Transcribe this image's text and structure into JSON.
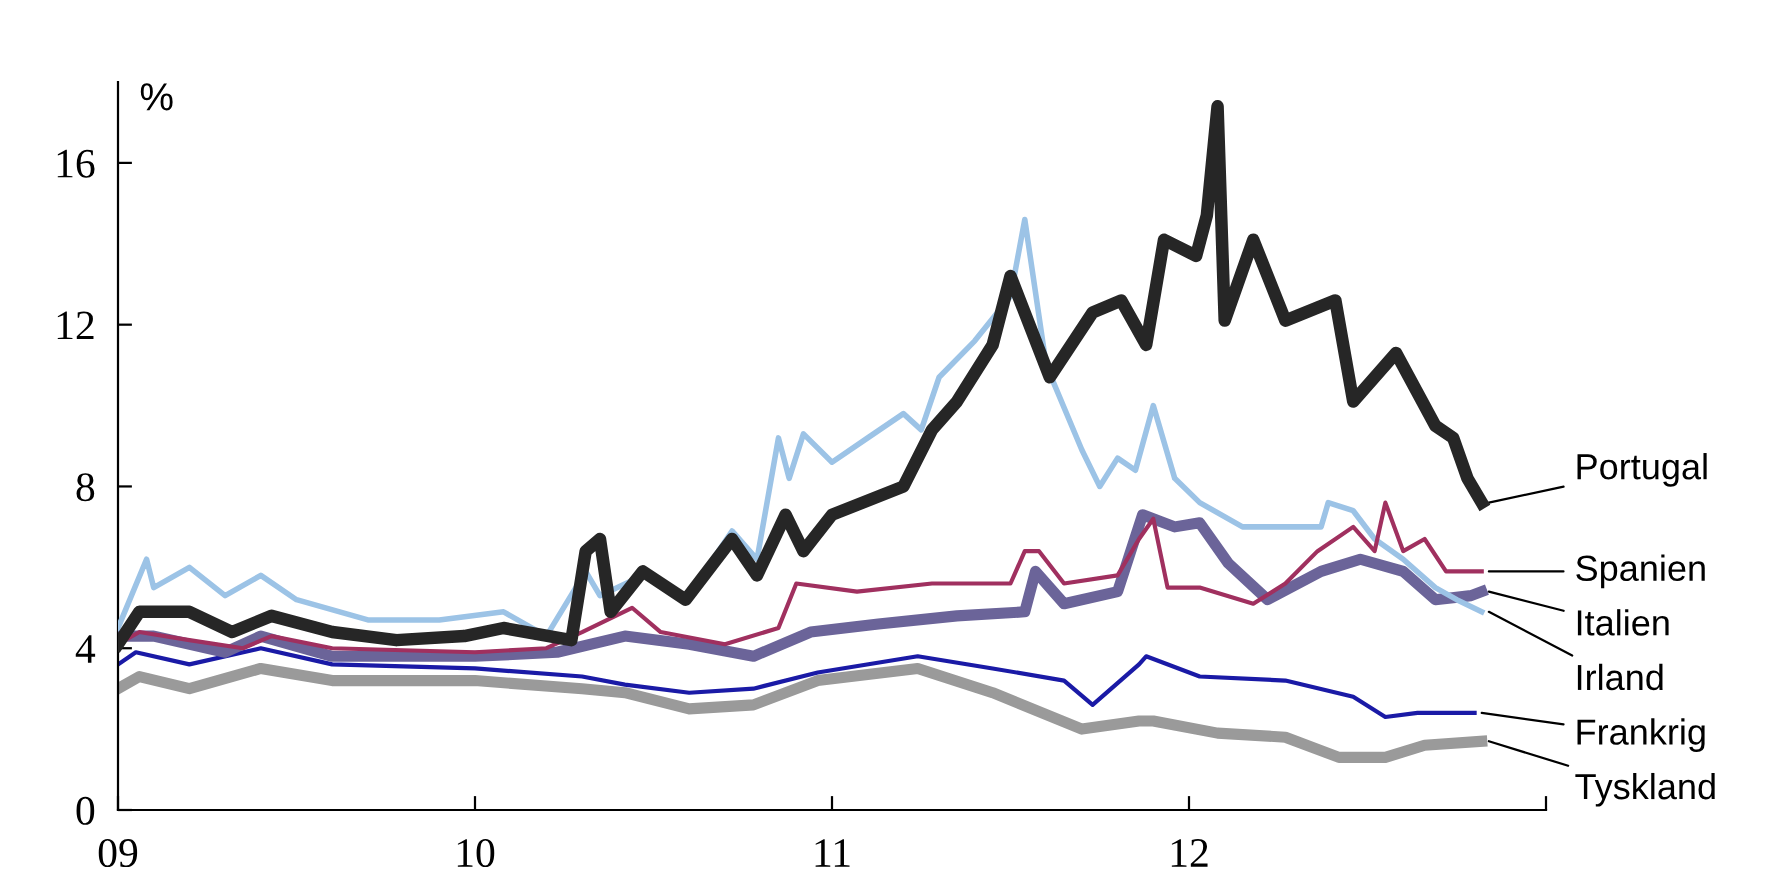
{
  "chart_data": {
    "type": "line",
    "ylabel": "%",
    "xlim": [
      2009,
      2013
    ],
    "ylim": [
      0,
      18
    ],
    "xticks": [
      {
        "value": 2009,
        "label": "09"
      },
      {
        "value": 2010,
        "label": "10"
      },
      {
        "value": 2011,
        "label": "11"
      },
      {
        "value": 2012,
        "label": "12"
      },
      {
        "value": 2013,
        "label": null
      }
    ],
    "yticks": [
      0,
      4,
      8,
      12,
      16
    ],
    "line_style": "solid",
    "series": [
      {
        "name": "Portugal",
        "color": "#262626",
        "x": [
          2009.0,
          2009.06,
          2009.2,
          2009.32,
          2009.43,
          2009.6,
          2009.78,
          2009.97,
          2010.08,
          2010.27,
          2010.31,
          2010.35,
          2010.38,
          2010.47,
          2010.59,
          2010.72,
          2010.79,
          2010.87,
          2010.92,
          2011.0,
          2011.2,
          2011.28,
          2011.35,
          2011.45,
          2011.5,
          2011.61,
          2011.73,
          2011.81,
          2011.88,
          2011.93,
          2012.02,
          2012.05,
          2012.08,
          2012.1,
          2012.18,
          2012.27,
          2012.41,
          2012.46,
          2012.58,
          2012.69,
          2012.74,
          2012.78,
          2012.82
        ],
        "values": [
          4.1,
          4.9,
          4.9,
          4.4,
          4.8,
          4.4,
          4.2,
          4.3,
          4.5,
          4.2,
          6.4,
          6.7,
          4.9,
          5.9,
          5.2,
          6.7,
          5.8,
          7.3,
          6.4,
          7.3,
          8.0,
          9.4,
          10.1,
          11.5,
          13.2,
          10.7,
          12.3,
          12.6,
          11.5,
          14.1,
          13.7,
          14.7,
          17.4,
          12.1,
          14.1,
          12.1,
          12.6,
          10.1,
          11.3,
          9.5,
          9.2,
          8.2,
          7.6
        ]
      },
      {
        "name": "Spanien",
        "color": "#a0305f",
        "x": [
          2009.0,
          2009.06,
          2009.2,
          2009.35,
          2009.43,
          2009.6,
          2010.0,
          2010.2,
          2010.3,
          2010.44,
          2010.52,
          2010.7,
          2010.85,
          2010.9,
          2011.07,
          2011.28,
          2011.5,
          2011.54,
          2011.58,
          2011.65,
          2011.8,
          2011.86,
          2011.9,
          2011.94,
          2012.03,
          2012.18,
          2012.27,
          2012.36,
          2012.46,
          2012.52,
          2012.55,
          2012.6,
          2012.66,
          2012.72,
          2012.82
        ],
        "values": [
          4.1,
          4.4,
          4.2,
          4.0,
          4.3,
          4.0,
          3.9,
          4.0,
          4.4,
          5.0,
          4.4,
          4.1,
          4.5,
          5.6,
          5.4,
          5.6,
          5.6,
          6.4,
          6.4,
          5.6,
          5.8,
          6.7,
          7.2,
          5.5,
          5.5,
          5.1,
          5.6,
          6.4,
          7.0,
          6.4,
          7.6,
          6.4,
          6.7,
          5.9,
          5.9
        ]
      },
      {
        "name": "Italien",
        "color": "#6b6499",
        "x": [
          2009.0,
          2009.1,
          2009.3,
          2009.4,
          2009.6,
          2010.0,
          2010.23,
          2010.42,
          2010.6,
          2010.78,
          2010.94,
          2011.13,
          2011.35,
          2011.54,
          2011.57,
          2011.65,
          2011.8,
          2011.87,
          2011.96,
          2012.03,
          2012.11,
          2012.22,
          2012.37,
          2012.48,
          2012.6,
          2012.69,
          2012.79,
          2012.82
        ],
        "values": [
          4.3,
          4.3,
          3.9,
          4.3,
          3.8,
          3.8,
          3.9,
          4.3,
          4.1,
          3.8,
          4.4,
          4.6,
          4.8,
          4.9,
          5.9,
          5.1,
          5.4,
          7.3,
          7.0,
          7.1,
          6.1,
          5.2,
          5.9,
          6.2,
          5.9,
          5.2,
          5.3,
          5.4
        ]
      },
      {
        "name": "Irland",
        "color": "#9cc3e6",
        "x": [
          2009.0,
          2009.08,
          2009.1,
          2009.2,
          2009.3,
          2009.4,
          2009.5,
          2009.7,
          2009.9,
          2010.08,
          2010.2,
          2010.31,
          2010.35,
          2010.47,
          2010.59,
          2010.72,
          2010.79,
          2010.85,
          2010.88,
          2010.92,
          2011.0,
          2011.1,
          2011.2,
          2011.25,
          2011.3,
          2011.4,
          2011.5,
          2011.54,
          2011.6,
          2011.7,
          2011.75,
          2011.8,
          2011.85,
          2011.9,
          2011.96,
          2012.03,
          2012.15,
          2012.37,
          2012.39,
          2012.46,
          2012.52,
          2012.6,
          2012.69,
          2012.75,
          2012.82
        ],
        "values": [
          4.5,
          6.2,
          5.5,
          6.0,
          5.3,
          5.8,
          5.2,
          4.7,
          4.7,
          4.9,
          4.3,
          5.9,
          5.3,
          5.8,
          5.2,
          6.9,
          6.2,
          9.2,
          8.2,
          9.3,
          8.6,
          9.2,
          9.8,
          9.4,
          10.7,
          11.6,
          12.7,
          14.6,
          11.0,
          8.9,
          8.0,
          8.7,
          8.4,
          10.0,
          8.2,
          7.6,
          7.0,
          7.0,
          7.6,
          7.4,
          6.7,
          6.2,
          5.5,
          5.2,
          4.9
        ]
      },
      {
        "name": "Frankrig",
        "color": "#1a1aa6",
        "x": [
          2009.0,
          2009.05,
          2009.2,
          2009.4,
          2009.6,
          2010.0,
          2010.3,
          2010.42,
          2010.6,
          2010.78,
          2010.96,
          2011.24,
          2011.45,
          2011.65,
          2011.73,
          2011.86,
          2011.88,
          2012.03,
          2012.27,
          2012.46,
          2012.55,
          2012.64,
          2012.8
        ],
        "values": [
          3.6,
          3.9,
          3.6,
          4.0,
          3.6,
          3.5,
          3.3,
          3.1,
          2.9,
          3.0,
          3.4,
          3.8,
          3.5,
          3.2,
          2.6,
          3.6,
          3.8,
          3.3,
          3.2,
          2.8,
          2.3,
          2.4,
          2.4
        ]
      },
      {
        "name": "Tyskland",
        "color": "#9a9a9a",
        "x": [
          2009.0,
          2009.06,
          2009.2,
          2009.4,
          2009.6,
          2010.0,
          2010.3,
          2010.42,
          2010.6,
          2010.78,
          2010.96,
          2011.24,
          2011.45,
          2011.7,
          2011.86,
          2011.9,
          2012.08,
          2012.27,
          2012.42,
          2012.55,
          2012.66,
          2012.82
        ],
        "values": [
          3.0,
          3.3,
          3.0,
          3.5,
          3.2,
          3.2,
          3.0,
          2.9,
          2.5,
          2.6,
          3.2,
          3.5,
          2.9,
          2.0,
          2.2,
          2.2,
          1.9,
          1.8,
          1.3,
          1.3,
          1.6,
          1.7
        ]
      }
    ]
  }
}
